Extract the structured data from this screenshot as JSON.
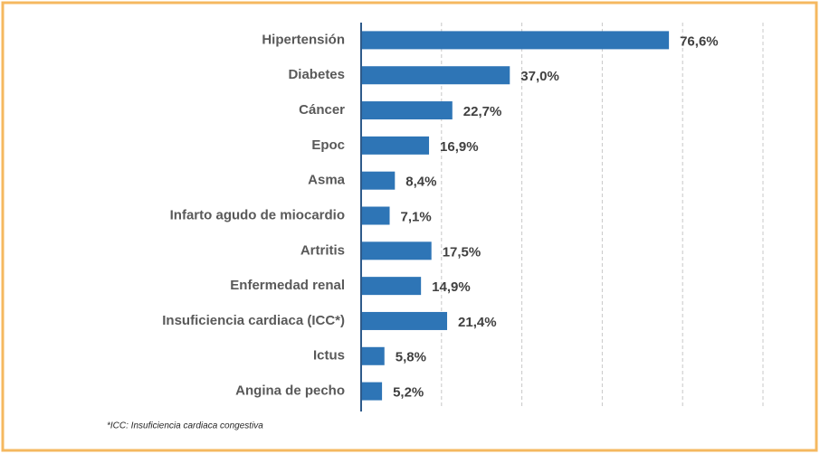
{
  "chart_data": {
    "type": "bar",
    "orientation": "horizontal",
    "categories": [
      "Hipertensión",
      "Diabetes",
      "Cáncer",
      "Epoc",
      "Asma",
      "Infarto agudo de miocardio",
      "Artritis",
      "Enfermedad renal",
      "Insuficiencia cardiaca (ICC*)",
      "Ictus",
      "Angina de pecho"
    ],
    "values": [
      76.6,
      37.0,
      22.7,
      16.9,
      8.4,
      7.1,
      17.5,
      14.9,
      21.4,
      5.8,
      5.2
    ],
    "value_labels": [
      "76,6%",
      "37,0%",
      "22,7%",
      "16,9%",
      "8,4%",
      "7,1%",
      "17,5%",
      "14,9%",
      "21,4%",
      "5,8%",
      "5,2%"
    ],
    "color": "#2e75b6",
    "xlim": [
      0,
      100
    ],
    "xticks": [
      20,
      40,
      60,
      80,
      100
    ],
    "grid": true,
    "note": "*ICC: Insuficiencia cardiaca congestiva"
  }
}
